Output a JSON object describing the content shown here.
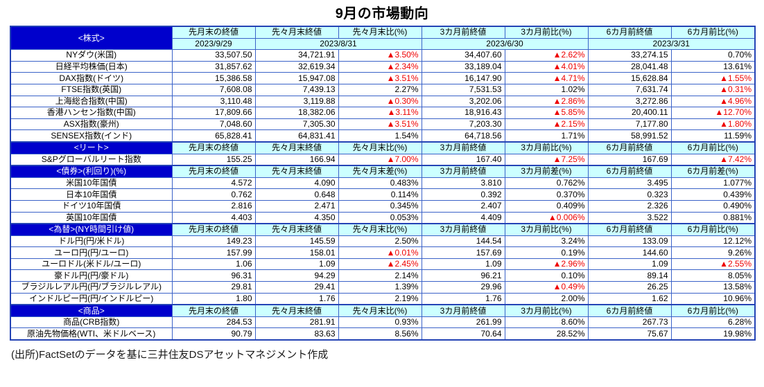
{
  "title": "9月の市場動向",
  "source": "(出所)FactSetのデータを基に三井住友DSアセットマネジメント作成",
  "colors": {
    "section_header_bg": "#0000cc",
    "section_header_text": "#ffffff",
    "column_header_bg": "#ccffff",
    "border": "#3a62c8",
    "outer_border": "#2443b5",
    "negative_value": "#ee0000",
    "positive_value": "#000000"
  },
  "table": {
    "sections": [
      {
        "label": "<株式>",
        "columns": [
          "先月末の終値",
          "先々月末終値",
          "先々月末比(%)",
          "3カ月前終値",
          "3カ月前比(%)",
          "6カ月前終値",
          "6カ月前比(%)"
        ],
        "dates": [
          "2023/9/29",
          "2023/8/31",
          "2023/6/30",
          "2023/3/31"
        ],
        "rows": [
          {
            "label": "NYダウ(米国)",
            "values": [
              "33,507.50",
              "34,721.91",
              "▲3.50%",
              "34,407.60",
              "▲2.62%",
              "33,274.15",
              "0.70%"
            ]
          },
          {
            "label": "日経平均株価(日本)",
            "values": [
              "31,857.62",
              "32,619.34",
              "▲2.34%",
              "33,189.04",
              "▲4.01%",
              "28,041.48",
              "13.61%"
            ]
          },
          {
            "label": "DAX指数(ドイツ)",
            "values": [
              "15,386.58",
              "15,947.08",
              "▲3.51%",
              "16,147.90",
              "▲4.71%",
              "15,628.84",
              "▲1.55%"
            ]
          },
          {
            "label": "FTSE指数(英国)",
            "values": [
              "7,608.08",
              "7,439.13",
              "2.27%",
              "7,531.53",
              "1.02%",
              "7,631.74",
              "▲0.31%"
            ]
          },
          {
            "label": "上海総合指数(中国)",
            "values": [
              "3,110.48",
              "3,119.88",
              "▲0.30%",
              "3,202.06",
              "▲2.86%",
              "3,272.86",
              "▲4.96%"
            ]
          },
          {
            "label": "香港ハンセン指数(中国)",
            "values": [
              "17,809.66",
              "18,382.06",
              "▲3.11%",
              "18,916.43",
              "▲5.85%",
              "20,400.11",
              "▲12.70%"
            ]
          },
          {
            "label": "ASX指数(豪州)",
            "values": [
              "7,048.60",
              "7,305.30",
              "▲3.51%",
              "7,203.30",
              "▲2.15%",
              "7,177.80",
              "▲1.80%"
            ]
          },
          {
            "label": "SENSEX指数(インド)",
            "values": [
              "65,828.41",
              "64,831.41",
              "1.54%",
              "64,718.56",
              "1.71%",
              "58,991.52",
              "11.59%"
            ]
          }
        ]
      },
      {
        "label": "<リート>",
        "columns": [
          "先月末の終値",
          "先々月末終値",
          "先々月末比(%)",
          "3カ月前終値",
          "3カ月前比(%)",
          "6カ月前終値",
          "6カ月前比(%)"
        ],
        "rows": [
          {
            "label": "S&Pグローバルリート指数",
            "values": [
              "155.25",
              "166.94",
              "▲7.00%",
              "167.40",
              "▲7.25%",
              "167.69",
              "▲7.42%"
            ]
          }
        ]
      },
      {
        "label": "<債券>(利回り)(%)",
        "columns": [
          "先月末の終値",
          "先々月末終値",
          "先々月末差(%)",
          "3カ月前終値",
          "3カ月前差(%)",
          "6カ月前終値",
          "6カ月前差(%)"
        ],
        "rows": [
          {
            "label": "米国10年国債",
            "values": [
              "4.572",
              "4.090",
              "0.483%",
              "3.810",
              "0.762%",
              "3.495",
              "1.077%"
            ]
          },
          {
            "label": "日本10年国債",
            "values": [
              "0.762",
              "0.648",
              "0.114%",
              "0.392",
              "0.370%",
              "0.323",
              "0.439%"
            ]
          },
          {
            "label": "ドイツ10年国債",
            "values": [
              "2.816",
              "2.471",
              "0.345%",
              "2.407",
              "0.409%",
              "2.326",
              "0.490%"
            ]
          },
          {
            "label": "英国10年国債",
            "values": [
              "4.403",
              "4.350",
              "0.053%",
              "4.409",
              "▲0.006%",
              "3.522",
              "0.881%"
            ]
          }
        ]
      },
      {
        "label": "<為替>(NY時間引け値)",
        "columns": [
          "先月末の終値",
          "先々月末終値",
          "先々月末比(%)",
          "3カ月前終値",
          "3カ月前比(%)",
          "6カ月前終値",
          "6カ月前比(%)"
        ],
        "rows": [
          {
            "label": "ドル円(円/米ドル)",
            "values": [
              "149.23",
              "145.59",
              "2.50%",
              "144.54",
              "3.24%",
              "133.09",
              "12.12%"
            ]
          },
          {
            "label": "ユーロ円(円/ユーロ)",
            "values": [
              "157.99",
              "158.01",
              "▲0.01%",
              "157.69",
              "0.19%",
              "144.60",
              "9.26%"
            ]
          },
          {
            "label": "ユーロドル(米ドル/ユーロ)",
            "values": [
              "1.06",
              "1.09",
              "▲2.45%",
              "1.09",
              "▲2.96%",
              "1.09",
              "▲2.55%"
            ]
          },
          {
            "label": "豪ドル円(円/豪ドル)",
            "values": [
              "96.31",
              "94.29",
              "2.14%",
              "96.21",
              "0.10%",
              "89.14",
              "8.05%"
            ]
          },
          {
            "label": "ブラジルレアル円(円/ブラジルレアル)",
            "values": [
              "29.81",
              "29.41",
              "1.39%",
              "29.96",
              "▲0.49%",
              "26.25",
              "13.58%"
            ]
          },
          {
            "label": "インドルピー円(円/インドルピー)",
            "values": [
              "1.80",
              "1.76",
              "2.19%",
              "1.76",
              "2.00%",
              "1.62",
              "10.96%"
            ]
          }
        ]
      },
      {
        "label": "<商品>",
        "columns": [
          "先月末の終値",
          "先々月末終値",
          "先々月末比(%)",
          "3カ月前終値",
          "3カ月前比(%)",
          "6カ月前終値",
          "6カ月前比(%)"
        ],
        "rows": [
          {
            "label": "商品(CRB指数)",
            "values": [
              "284.53",
              "281.91",
              "0.93%",
              "261.99",
              "8.60%",
              "267.73",
              "6.28%"
            ]
          },
          {
            "label": "原油先物価格(WTI、米ドルベース)",
            "values": [
              "90.79",
              "83.63",
              "8.56%",
              "70.64",
              "28.52%",
              "75.67",
              "19.98%"
            ]
          }
        ]
      }
    ]
  }
}
